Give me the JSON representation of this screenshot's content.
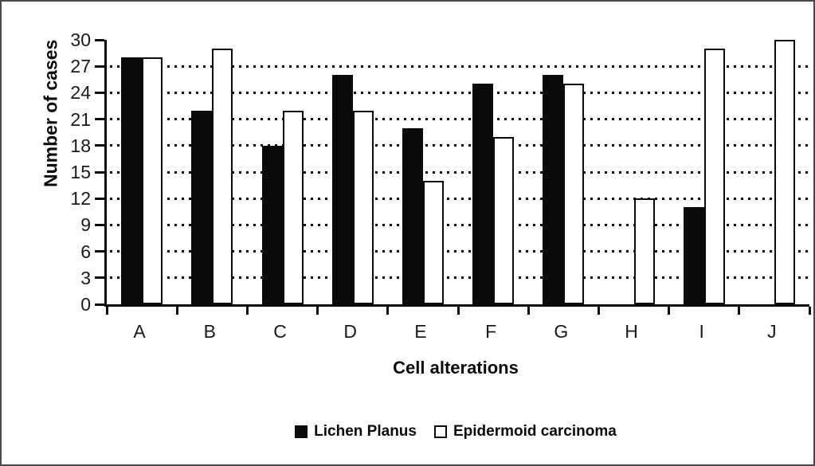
{
  "figure": {
    "background_color": "#ffffff",
    "frame_color": "#4a4a4a",
    "ink_color": "#0a0a0a"
  },
  "chart_data": {
    "type": "bar",
    "title": "",
    "xlabel": "Cell alterations",
    "ylabel": "Number of cases",
    "categories": [
      "A",
      "B",
      "C",
      "D",
      "E",
      "F",
      "G",
      "H",
      "I",
      "J"
    ],
    "series": [
      {
        "name": "Lichen Planus",
        "style": "solid",
        "color": "#0a0a0a",
        "values": [
          28,
          22,
          18,
          26,
          20,
          25,
          26,
          0,
          11,
          0
        ]
      },
      {
        "name": "Epidermoid carcinoma",
        "style": "outlined",
        "color": "#ffffff",
        "border_color": "#0a0a0a",
        "values": [
          28,
          29,
          22,
          22,
          14,
          19,
          25,
          12,
          29,
          30
        ]
      }
    ],
    "ylim": [
      0,
      30
    ],
    "yticks": [
      0,
      3,
      6,
      9,
      12,
      15,
      18,
      21,
      24,
      27,
      30
    ],
    "gridlines": {
      "style": "dotted",
      "at": [
        3,
        6,
        9,
        12,
        15,
        18,
        21,
        24,
        27
      ]
    },
    "legend_position": "bottom-center"
  }
}
